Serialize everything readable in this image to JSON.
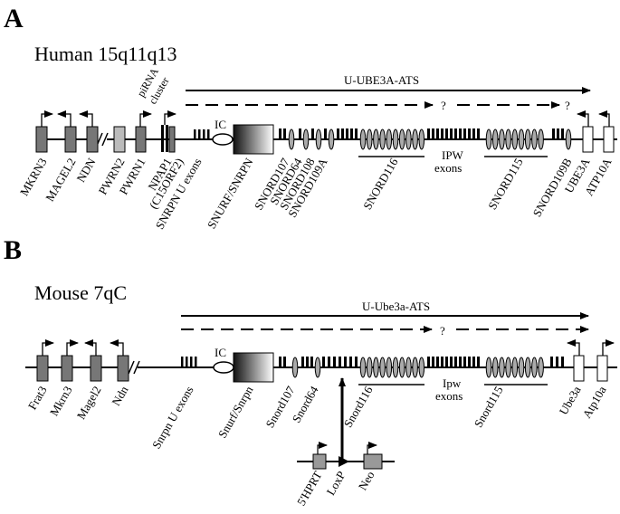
{
  "panel_a": {
    "letter": "A",
    "title": "Human 15q11q13",
    "transcript_label": "U-UBE3A-ATS",
    "question_marks": [
      "?",
      "?"
    ],
    "pirna_label": [
      "piRNA",
      "cluster"
    ],
    "ic_label": "IC",
    "ipw_label": [
      "IPW",
      "exons"
    ],
    "gene_labels": [
      "MKRN3",
      "MAGEL2",
      "NDN",
      "PWRN2",
      "PWRN1",
      "NPAP1",
      "(C15ORF2)",
      "SNRPN U exons",
      "SNURF/SNRPN",
      "SNORD107",
      "SNORD64",
      "SNORD108",
      "SNORD109A",
      "SNORD116",
      "SNORD115",
      "SNORD109B",
      "UBE3A",
      "ATP10A"
    ]
  },
  "panel_b": {
    "letter": "B",
    "title": "Mouse 7qC",
    "transcript_label": "U-Ube3a-ATS",
    "question_marks": [
      "?"
    ],
    "ic_label": "IC",
    "ipw_label": [
      "Ipw",
      "exons"
    ],
    "gene_labels": [
      "Frat3",
      "Mkrn3",
      "Magel2",
      "Ndn",
      "Snrpn U exons",
      "Snurf/Snrpn",
      "Snord107",
      "Snord64",
      "Snord116",
      "Snord115",
      "Ube3a",
      "Atp10a"
    ],
    "construct_labels": [
      "5'HPRT",
      "LoxP",
      "Neo"
    ]
  },
  "colors": {
    "line": "#000000",
    "gene_fill": "#777777",
    "gene_fill_light": "#bbbbbb",
    "gradient_dark": "#111111",
    "gradient_light": "#ffffff"
  }
}
